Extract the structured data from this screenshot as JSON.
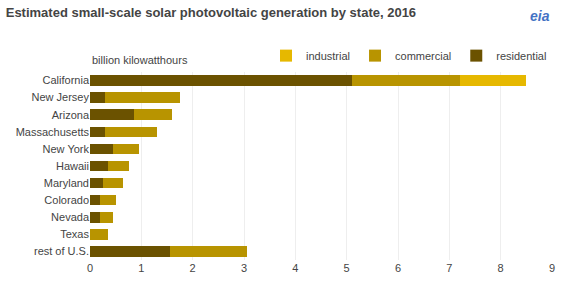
{
  "chart_data": {
    "type": "bar",
    "orientation": "horizontal",
    "stacked": true,
    "title": "Estimated small-scale solar photovoltaic generation by state, 2016",
    "subtitle": "billion kilowatthours",
    "annotations": [
      {
        "text": "eia",
        "color": "#4472c4"
      }
    ],
    "categories": [
      "California",
      "New Jersey",
      "Arizona",
      "Massachusetts",
      "New York",
      "Hawaii",
      "Maryland",
      "Colorado",
      "Nevada",
      "Texas",
      "rest of U.S."
    ],
    "series": [
      {
        "name": "residential",
        "color": "#6b5200",
        "values": [
          5.1,
          0.3,
          0.85,
          0.3,
          0.45,
          0.35,
          0.25,
          0.2,
          0.2,
          0.0,
          1.55
        ]
      },
      {
        "name": "commercial",
        "color": "#b89400",
        "values": [
          2.1,
          1.45,
          0.75,
          1.0,
          0.5,
          0.4,
          0.4,
          0.3,
          0.25,
          0.35,
          1.5
        ]
      },
      {
        "name": "industrial",
        "color": "#e6b800",
        "values": [
          1.3,
          0.0,
          0.0,
          0.0,
          0.0,
          0.0,
          0.0,
          0.0,
          0.0,
          0.0,
          0.0
        ]
      }
    ],
    "xlim": [
      0,
      9
    ],
    "xticks": [
      0,
      1,
      2,
      3,
      4,
      5,
      6,
      7,
      8,
      9
    ],
    "grid": true,
    "legend": "top"
  }
}
